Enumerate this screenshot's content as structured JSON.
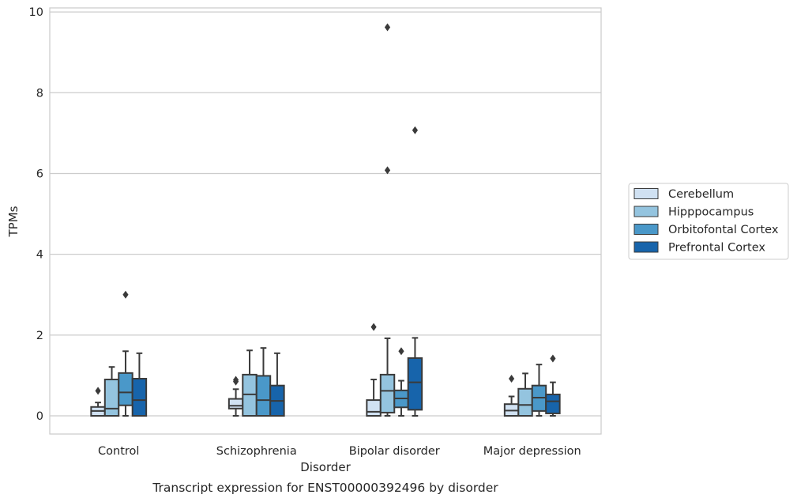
{
  "chart_data": {
    "type": "box",
    "title": "",
    "caption": "Transcript expression for ENST00000392496 by disorder",
    "xlabel": "Disorder",
    "ylabel": "TPMs",
    "ylim": [
      -0.45,
      10.1
    ],
    "yticks": [
      0,
      2,
      4,
      6,
      8,
      10
    ],
    "grid": "horizontal",
    "legend_position": "right",
    "categories": [
      "Control",
      "Schizophrenia",
      "Bipolar disorder",
      "Major depression"
    ],
    "series": [
      {
        "name": "Cerebellum",
        "color": "#d0e1f2",
        "boxes": [
          {
            "whisker_low": 0.0,
            "q1": 0.0,
            "median": 0.12,
            "q3": 0.22,
            "whisker_high": 0.33,
            "outliers": [
              0.62
            ]
          },
          {
            "whisker_low": 0.0,
            "q1": 0.18,
            "median": 0.25,
            "q3": 0.42,
            "whisker_high": 0.66,
            "outliers": [
              0.85,
              0.89
            ]
          },
          {
            "whisker_low": 0.0,
            "q1": 0.0,
            "median": 0.1,
            "q3": 0.39,
            "whisker_high": 0.9,
            "outliers": [
              2.2
            ]
          },
          {
            "whisker_low": 0.0,
            "q1": 0.0,
            "median": 0.13,
            "q3": 0.29,
            "whisker_high": 0.48,
            "outliers": [
              0.92
            ]
          }
        ]
      },
      {
        "name": "Hipppocampus",
        "color": "#94c4df",
        "boxes": [
          {
            "whisker_low": 0.0,
            "q1": 0.0,
            "median": 0.18,
            "q3": 0.9,
            "whisker_high": 1.21,
            "outliers": []
          },
          {
            "whisker_low": 0.0,
            "q1": 0.0,
            "median": 0.53,
            "q3": 1.02,
            "whisker_high": 1.62,
            "outliers": []
          },
          {
            "whisker_low": 0.0,
            "q1": 0.08,
            "median": 0.62,
            "q3": 1.02,
            "whisker_high": 1.92,
            "outliers": [
              6.08,
              9.62
            ]
          },
          {
            "whisker_low": 0.0,
            "q1": 0.0,
            "median": 0.27,
            "q3": 0.67,
            "whisker_high": 1.05,
            "outliers": []
          }
        ]
      },
      {
        "name": "Orbitofontal Cortex",
        "color": "#4a98c9",
        "boxes": [
          {
            "whisker_low": 0.0,
            "q1": 0.26,
            "median": 0.58,
            "q3": 1.06,
            "whisker_high": 1.6,
            "outliers": [
              3.0
            ]
          },
          {
            "whisker_low": 0.0,
            "q1": 0.0,
            "median": 0.39,
            "q3": 0.99,
            "whisker_high": 1.68,
            "outliers": []
          },
          {
            "whisker_low": 0.0,
            "q1": 0.21,
            "median": 0.43,
            "q3": 0.63,
            "whisker_high": 0.87,
            "outliers": [
              1.6
            ]
          },
          {
            "whisker_low": 0.0,
            "q1": 0.12,
            "median": 0.45,
            "q3": 0.75,
            "whisker_high": 1.27,
            "outliers": []
          }
        ]
      },
      {
        "name": "Prefrontal Cortex",
        "color": "#1764ab",
        "boxes": [
          {
            "whisker_low": 0.0,
            "q1": 0.0,
            "median": 0.39,
            "q3": 0.92,
            "whisker_high": 1.55,
            "outliers": []
          },
          {
            "whisker_low": 0.0,
            "q1": 0.0,
            "median": 0.37,
            "q3": 0.75,
            "whisker_high": 1.55,
            "outliers": []
          },
          {
            "whisker_low": 0.0,
            "q1": 0.15,
            "median": 0.83,
            "q3": 1.43,
            "whisker_high": 1.93,
            "outliers": [
              7.07
            ]
          },
          {
            "whisker_low": 0.0,
            "q1": 0.06,
            "median": 0.36,
            "q3": 0.53,
            "whisker_high": 0.83,
            "outliers": [
              1.42
            ]
          }
        ]
      }
    ]
  }
}
